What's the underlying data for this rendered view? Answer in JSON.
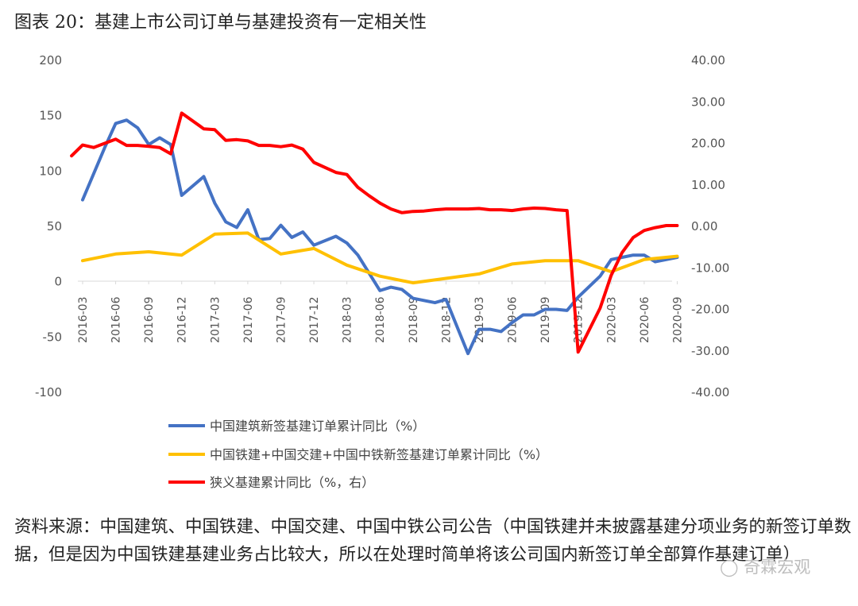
{
  "title": "图表 20：基建上市公司订单与基建投资有一定相关性",
  "source_text": "资料来源：中国建筑、中国铁建、中国交建、中国中铁公司公告（中国铁建并未披露基建分项业务的新签订单数据，但是因为中国铁建基建业务占比较大，所以在处理时简单将该公司国内新签订单全部算作基建订单）",
  "watermark": "奇霖宏观",
  "colors": {
    "blue": "#4472C4",
    "yellow": "#FFC000",
    "red": "#FF0000"
  },
  "chart_data": {
    "type": "line",
    "title": "图表 20：基建上市公司订单与基建投资有一定相关性",
    "xlabel": "",
    "ylabel_left": "",
    "ylabel_right": "",
    "ylim_left": [
      -100,
      200
    ],
    "ylim_right": [
      -40,
      40
    ],
    "yticks_left": [
      "200",
      "150",
      "100",
      "50",
      "0",
      "-50",
      "-100"
    ],
    "yticks_right": [
      "40.00",
      "30.00",
      "20.00",
      "10.00",
      "0.00",
      "-10.00",
      "-20.00",
      "-30.00",
      "-40.00"
    ],
    "x_tick_labels": [
      "2016-03",
      "2016-06",
      "2016-09",
      "2016-12",
      "2017-03",
      "2017-06",
      "2017-09",
      "2017-12",
      "2018-03",
      "2018-06",
      "2018-09",
      "2018-12",
      "2019-03",
      "2019-06",
      "2019-09",
      "2019-12",
      "2020-03",
      "2020-06",
      "2020-09"
    ],
    "grid": false,
    "legend_position": "bottom",
    "series": [
      {
        "name": "中国建筑新签基建订单累计同比（%）",
        "axis": "left",
        "color": "#4472C4",
        "x": [
          "2016-03",
          "2016-05",
          "2016-06",
          "2016-07",
          "2016-08",
          "2016-09",
          "2016-10",
          "2016-11",
          "2016-12",
          "2017-02",
          "2017-03",
          "2017-04",
          "2017-05",
          "2017-06",
          "2017-07",
          "2017-08",
          "2017-09",
          "2017-10",
          "2017-11",
          "2017-12",
          "2018-02",
          "2018-03",
          "2018-04",
          "2018-06",
          "2018-07",
          "2018-08",
          "2018-09",
          "2018-11",
          "2018-12",
          "2019-02",
          "2019-03",
          "2019-04",
          "2019-05",
          "2019-06",
          "2019-07",
          "2019-08",
          "2019-09",
          "2019-10",
          "2019-11",
          "2019-12",
          "2020-02",
          "2020-03",
          "2020-04",
          "2020-05",
          "2020-06",
          "2020-07",
          "2020-08",
          "2020-09"
        ],
        "values": [
          74,
          121,
          143,
          146,
          139,
          124,
          130,
          124,
          78,
          95,
          71,
          54,
          49,
          65,
          38,
          39,
          51,
          40,
          45,
          33,
          41,
          35,
          24,
          -8,
          -5,
          -7,
          -15,
          -19,
          -16,
          -65,
          -43,
          -43,
          -45,
          -37,
          -30,
          -30,
          -25,
          -25,
          -26,
          -14,
          5,
          20,
          22,
          24,
          24,
          18,
          20,
          22
        ]
      },
      {
        "name": "中国铁建+中国交建+中国中铁新签基建订单累计同比（%）",
        "axis": "left",
        "color": "#FFC000",
        "x": [
          "2016-03",
          "2016-06",
          "2016-09",
          "2016-12",
          "2017-03",
          "2017-06",
          "2017-09",
          "2017-12",
          "2018-03",
          "2018-06",
          "2018-09",
          "2018-12",
          "2019-03",
          "2019-06",
          "2019-09",
          "2019-12",
          "2020-03",
          "2020-06",
          "2020-09"
        ],
        "values": [
          19,
          25,
          27,
          24,
          43,
          44,
          25,
          30,
          15,
          5,
          -1,
          3,
          7,
          16,
          19,
          19,
          9,
          20,
          23
        ]
      },
      {
        "name": "狭义基建累计同比（%，右）",
        "axis": "right",
        "color": "#FF0000",
        "x": [
          "2016-02",
          "2016-03",
          "2016-04",
          "2016-05",
          "2016-06",
          "2016-07",
          "2016-08",
          "2016-09",
          "2016-10",
          "2016-11",
          "2016-12",
          "2017-02",
          "2017-03",
          "2017-04",
          "2017-05",
          "2017-06",
          "2017-07",
          "2017-08",
          "2017-09",
          "2017-10",
          "2017-11",
          "2017-12",
          "2018-02",
          "2018-03",
          "2018-04",
          "2018-05",
          "2018-06",
          "2018-07",
          "2018-08",
          "2018-09",
          "2018-10",
          "2018-11",
          "2018-12",
          "2019-02",
          "2019-03",
          "2019-04",
          "2019-05",
          "2019-06",
          "2019-07",
          "2019-08",
          "2019-09",
          "2019-10",
          "2019-11",
          "2019-12",
          "2020-02",
          "2020-03",
          "2020-04",
          "2020-05",
          "2020-06",
          "2020-07",
          "2020-08",
          "2020-09"
        ],
        "values": [
          17.0,
          19.6,
          19.0,
          20.0,
          21.0,
          19.5,
          19.5,
          19.3,
          19.0,
          17.5,
          27.3,
          23.5,
          23.3,
          20.7,
          20.9,
          20.6,
          19.5,
          19.5,
          19.2,
          19.6,
          18.6,
          15.4,
          13.0,
          12.5,
          9.4,
          7.4,
          5.6,
          4.2,
          3.3,
          3.6,
          3.7,
          4.0,
          4.2,
          4.2,
          4.3,
          4.0,
          4.0,
          3.8,
          4.2,
          4.4,
          4.3,
          4.0,
          3.8,
          -30.3,
          -19.7,
          -11.8,
          -6.3,
          -2.7,
          -1.0,
          -0.3,
          0.2,
          0.2
        ]
      }
    ]
  }
}
